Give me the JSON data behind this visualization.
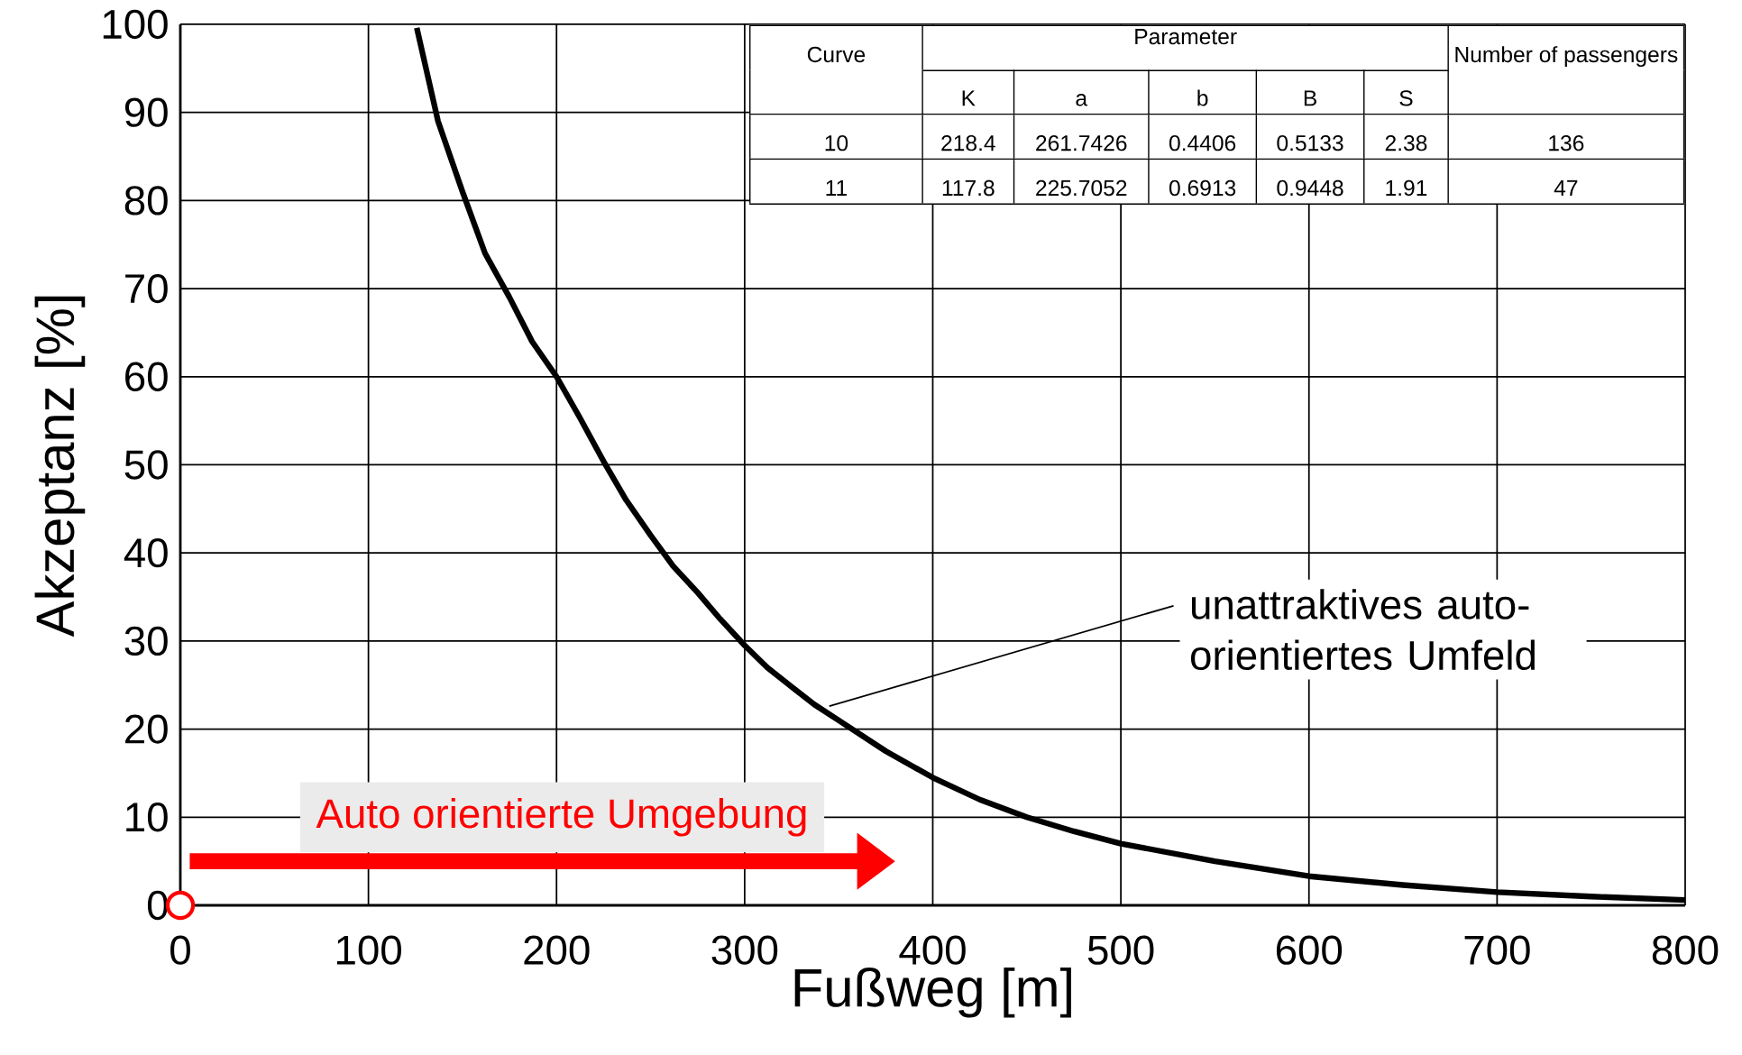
{
  "chart_data": {
    "type": "line",
    "xlabel": "Fußweg [m]",
    "ylabel": "Akzeptanz [%]",
    "x": [
      125.7,
      137,
      150,
      162,
      175,
      187,
      200,
      212,
      225,
      237,
      250,
      262,
      275,
      287,
      300,
      312,
      325,
      337,
      350,
      375,
      400,
      425,
      450,
      475,
      500,
      550,
      600,
      650,
      700,
      750,
      800
    ],
    "series": [
      {
        "color": "#000000",
        "values": [
          99.6,
          89,
          81,
          74,
          69,
          64,
          60,
          55.5,
          50.4,
          46,
          42,
          38.5,
          35.5,
          32.5,
          29.5,
          27,
          24.8,
          22.8,
          21,
          17.5,
          14.5,
          12,
          10,
          8.4,
          7,
          5,
          3.3,
          2.3,
          1.5,
          1,
          0.6
        ]
      }
    ],
    "xlim": [
      0,
      800
    ],
    "ylim": [
      0,
      100
    ],
    "xticks": [
      0,
      100,
      200,
      300,
      400,
      500,
      600,
      700,
      800
    ],
    "yticks": [
      0,
      10,
      20,
      30,
      40,
      50,
      60,
      70,
      80,
      90,
      100
    ],
    "grid": true,
    "marker": "none",
    "line_style": "solid",
    "annotations": [
      "Curve",
      "Parameter",
      "Number of passengers",
      "K",
      "a",
      "b",
      "B",
      "S",
      "10",
      "218.4",
      "261.7426",
      "0.4406",
      "0.5133",
      "2.38",
      "136",
      "11",
      "117.8",
      "225.7052",
      "0.6913",
      "0.9448",
      "1.91",
      "47",
      "Auto orientierte Umgebung",
      {
        "text": "unattraktives auto-orientiertes Umfeld",
        "x": 345,
        "y": 22.6
      }
    ]
  }
}
